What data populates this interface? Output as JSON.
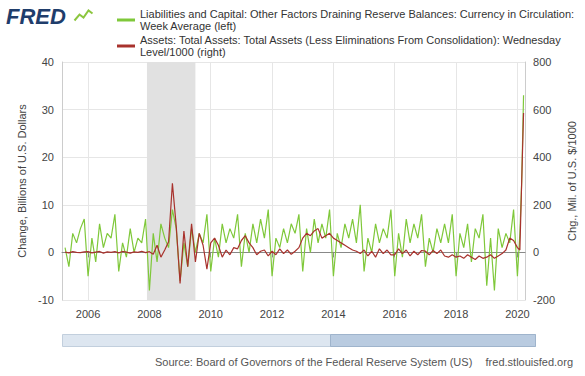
{
  "chart_data": {
    "type": "line",
    "logo": "FRED",
    "y_label": "Change, Billions of U.S. Dollars",
    "y2_label": "Chg., Mil. of U.S. $/1000",
    "source": "Source: Board of Governors of the Federal Reserve System (US)",
    "site": "fred.stlouisfed.org",
    "legend": "top",
    "grid": true,
    "xlim": [
      2005.15,
      2020.25
    ],
    "xticks": [
      2006,
      2008,
      2010,
      2012,
      2014,
      2016,
      2018,
      2020
    ],
    "ylim": [
      -10,
      40
    ],
    "yticks": [
      -10,
      0,
      10,
      20,
      30,
      40
    ],
    "y2lim": [
      -200,
      800
    ],
    "y2ticks": [
      -200,
      0,
      200,
      400,
      600,
      800
    ],
    "recessions": [
      [
        2007.92,
        2009.5
      ]
    ],
    "x": [
      2005.25,
      2005.375,
      2005.5,
      2005.625,
      2005.75,
      2005.875,
      2006,
      2006.125,
      2006.25,
      2006.375,
      2006.5,
      2006.625,
      2006.75,
      2006.875,
      2007,
      2007.125,
      2007.25,
      2007.375,
      2007.5,
      2007.625,
      2007.75,
      2007.875,
      2008,
      2008.125,
      2008.25,
      2008.375,
      2008.5,
      2008.625,
      2008.75,
      2008.875,
      2009,
      2009.125,
      2009.25,
      2009.375,
      2009.5,
      2009.625,
      2009.75,
      2009.875,
      2010,
      2010.125,
      2010.25,
      2010.375,
      2010.5,
      2010.625,
      2010.75,
      2010.875,
      2011,
      2011.125,
      2011.25,
      2011.375,
      2011.5,
      2011.625,
      2011.75,
      2011.875,
      2012,
      2012.125,
      2012.25,
      2012.375,
      2012.5,
      2012.625,
      2012.75,
      2012.875,
      2013,
      2013.125,
      2013.25,
      2013.375,
      2013.5,
      2013.625,
      2013.75,
      2013.875,
      2014,
      2014.125,
      2014.25,
      2014.375,
      2014.5,
      2014.625,
      2014.75,
      2014.875,
      2015,
      2015.125,
      2015.25,
      2015.375,
      2015.5,
      2015.625,
      2015.75,
      2015.875,
      2016,
      2016.125,
      2016.25,
      2016.375,
      2016.5,
      2016.625,
      2016.75,
      2016.875,
      2017,
      2017.125,
      2017.25,
      2017.375,
      2017.5,
      2017.625,
      2017.75,
      2017.875,
      2018,
      2018.125,
      2018.25,
      2018.375,
      2018.5,
      2018.625,
      2018.75,
      2018.875,
      2019,
      2019.125,
      2019.25,
      2019.375,
      2019.5,
      2019.625,
      2019.75,
      2019.875,
      2020,
      2020.08,
      2020.14,
      2020.2
    ],
    "series": [
      {
        "name": "Liabilities and Capital: Other Factors Draining Reserve Balances: Currency in Circulation: Week Average (left)",
        "color": "#7fc83a",
        "axis": "y",
        "values": [
          1,
          -3,
          4,
          2,
          5,
          7,
          -5,
          3,
          -2,
          6,
          1,
          4,
          3,
          8,
          -4,
          2,
          -1,
          5,
          0,
          3,
          2,
          7,
          -8,
          4,
          -2,
          6,
          3,
          1,
          9,
          5,
          -6,
          2,
          -3,
          5,
          0,
          4,
          2,
          8,
          -4,
          3,
          -1,
          6,
          2,
          5,
          3,
          8,
          -3,
          4,
          0,
          6,
          2,
          7,
          3,
          9,
          -5,
          3,
          1,
          5,
          2,
          6,
          4,
          8,
          -4,
          5,
          0,
          7,
          2,
          6,
          3,
          9,
          -5,
          4,
          1,
          6,
          3,
          7,
          2,
          10,
          -4,
          3,
          0,
          6,
          2,
          5,
          3,
          9,
          -5,
          4,
          -1,
          7,
          2,
          6,
          3,
          8,
          -3,
          3,
          0,
          5,
          2,
          6,
          2,
          8,
          -5,
          4,
          1,
          6,
          -2,
          5,
          3,
          8,
          -7,
          3,
          -8,
          5,
          1,
          4,
          2,
          9,
          -5,
          4,
          15,
          33
        ]
      },
      {
        "name": "Assets: Total Assets: Total Assets (Less Eliminations From Consolidation): Wednesday Level/1000 (right)",
        "color": "#a8322d",
        "axis": "y2",
        "values": [
          1,
          -2,
          3,
          0,
          -1,
          2,
          3,
          -2,
          1,
          4,
          -3,
          2,
          0,
          3,
          -2,
          4,
          1,
          -3,
          2,
          0,
          5,
          -1,
          3,
          -8,
          30,
          -20,
          10,
          45,
          290,
          110,
          -130,
          90,
          -60,
          120,
          -40,
          80,
          30,
          -70,
          40,
          60,
          30,
          -20,
          10,
          -10,
          20,
          15,
          50,
          70,
          40,
          20,
          -10,
          5,
          10,
          -15,
          5,
          -10,
          15,
          -5,
          10,
          -8,
          5,
          20,
          60,
          80,
          70,
          90,
          100,
          60,
          70,
          80,
          60,
          50,
          40,
          30,
          20,
          10,
          5,
          -5,
          10,
          -15,
          5,
          -20,
          15,
          -5,
          10,
          -10,
          -10,
          15,
          -5,
          10,
          -15,
          5,
          -10,
          8,
          5,
          -10,
          8,
          -5,
          10,
          -15,
          -20,
          -10,
          -20,
          -15,
          -25,
          -10,
          -20,
          -30,
          -15,
          -25,
          -20,
          -10,
          -25,
          -15,
          -5,
          10,
          60,
          50,
          20,
          10,
          300,
          586
        ]
      }
    ]
  }
}
